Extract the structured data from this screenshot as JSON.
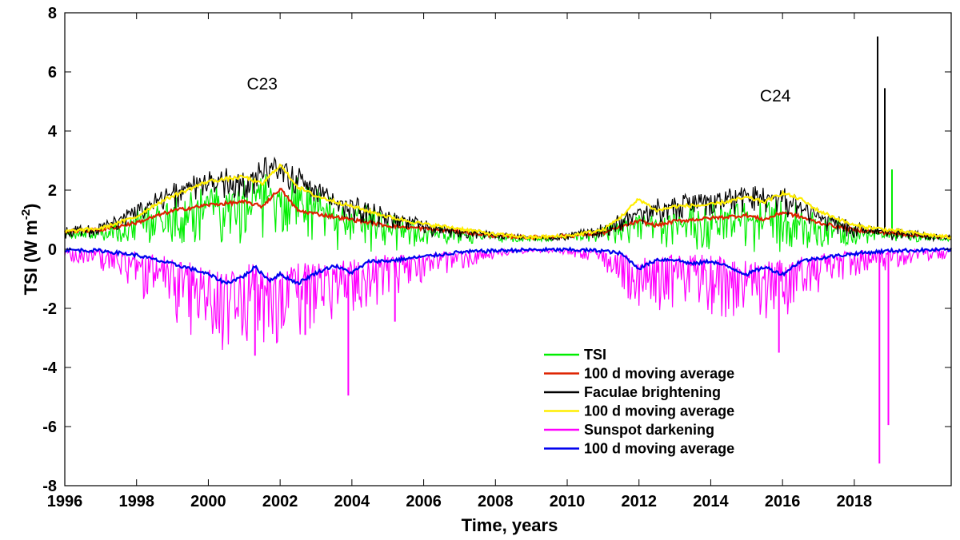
{
  "chart_data": {
    "type": "line",
    "title": "",
    "xlabel": "Time, years",
    "ylabel": "TSI (W m",
    "ylabel_sup": "-2",
    "ylabel_close": ")",
    "xlim": [
      1996,
      2020.7
    ],
    "ylim": [
      -8,
      8
    ],
    "x_ticks": [
      1996,
      1998,
      2000,
      2002,
      2004,
      2006,
      2008,
      2010,
      2012,
      2014,
      2016,
      2018
    ],
    "x_tick_labels": [
      "1996",
      "1998",
      "2000",
      "2002",
      "2004",
      "2006",
      "2008",
      "2010",
      "2012",
      "2014",
      "2016",
      "2018"
    ],
    "y_ticks": [
      -8,
      -6,
      -4,
      -2,
      0,
      2,
      4,
      6,
      8
    ],
    "y_tick_labels": [
      "-8",
      "-6",
      "-4",
      "-2",
      "0",
      "2",
      "4",
      "6",
      "8"
    ],
    "annotations": [
      {
        "text": "C23",
        "x": 2001.5,
        "y": 5.4
      },
      {
        "text": "C24",
        "x": 2015.8,
        "y": 5.0
      }
    ],
    "legend_position": "lower-center",
    "series": [
      {
        "name": "TSI",
        "color": "#00ee00",
        "kind": "daily",
        "x": [
          1996,
          1997,
          1998,
          1999,
          2000,
          2001,
          2002,
          2003,
          2004,
          2005,
          2006,
          2007,
          2008,
          2009,
          2010,
          2011,
          2012,
          2013,
          2014,
          2015,
          2016,
          2017,
          2018,
          2019,
          2020,
          2020.7
        ],
        "y": [
          0.5,
          0.55,
          0.9,
          1.2,
          1.5,
          1.55,
          1.9,
          1.3,
          1.0,
          0.75,
          0.6,
          0.5,
          0.4,
          0.35,
          0.4,
          0.6,
          0.85,
          0.9,
          0.95,
          0.95,
          1.1,
          0.8,
          0.55,
          0.5,
          0.4,
          0.35
        ],
        "amplitude": [
          0.2,
          0.3,
          0.7,
          1.0,
          1.3,
          1.4,
          1.5,
          1.3,
          1.2,
          0.9,
          0.5,
          0.3,
          0.2,
          0.1,
          0.1,
          0.4,
          0.7,
          0.9,
          1.0,
          1.1,
          1.2,
          0.8,
          0.4,
          0.3,
          0.15,
          0.1
        ],
        "spikes": [
          {
            "x": 2019.05,
            "y": 2.7
          }
        ]
      },
      {
        "name": "100 d moving average",
        "color": "#dd2200",
        "kind": "smooth",
        "x": [
          1996,
          1997,
          1998,
          1998.5,
          1999,
          2000,
          2001,
          2001.5,
          2002,
          2002.5,
          2003,
          2004,
          2005,
          2006,
          2007,
          2008,
          2009,
          2010,
          2011,
          2011.5,
          2012,
          2012.5,
          2013,
          2014,
          2015,
          2015.5,
          2016,
          2016.5,
          2017,
          2018,
          2019,
          2020,
          2020.7
        ],
        "y": [
          0.6,
          0.65,
          0.9,
          1.1,
          1.3,
          1.5,
          1.6,
          1.45,
          2.05,
          1.3,
          1.2,
          1.0,
          0.8,
          0.7,
          0.6,
          0.45,
          0.4,
          0.45,
          0.55,
          0.75,
          0.95,
          0.8,
          0.95,
          1.05,
          1.15,
          1.0,
          1.25,
          1.1,
          0.9,
          0.65,
          0.55,
          0.45,
          0.4
        ]
      },
      {
        "name": "Faculae brightening",
        "color": "#000000",
        "kind": "daily",
        "x": [
          1996,
          1997,
          1998,
          1999,
          2000,
          2001,
          2002,
          2003,
          2004,
          2005,
          2006,
          2007,
          2008,
          2009,
          2010,
          2011,
          2012,
          2013,
          2014,
          2015,
          2016,
          2017,
          2018,
          2019,
          2020,
          2020.7
        ],
        "y": [
          0.6,
          0.7,
          1.3,
          1.9,
          2.3,
          2.4,
          2.9,
          1.9,
          1.5,
          1.1,
          0.8,
          0.6,
          0.5,
          0.4,
          0.45,
          0.7,
          1.3,
          1.5,
          1.6,
          1.9,
          1.8,
          1.1,
          0.7,
          0.6,
          0.45,
          0.4
        ],
        "amplitude": [
          0.25,
          0.3,
          0.4,
          0.55,
          0.65,
          0.7,
          0.7,
          0.6,
          0.55,
          0.45,
          0.35,
          0.25,
          0.15,
          0.1,
          0.15,
          0.3,
          0.5,
          0.55,
          0.6,
          0.65,
          0.65,
          0.5,
          0.35,
          0.3,
          0.2,
          0.15
        ],
        "spikes": [
          {
            "x": 2018.65,
            "y": 7.2
          },
          {
            "x": 2018.85,
            "y": 5.45
          }
        ]
      },
      {
        "name": "100 d moving average",
        "color": "#ffee00",
        "kind": "smooth",
        "x": [
          1996,
          1997,
          1998,
          1998.5,
          1999,
          2000,
          2001,
          2001.5,
          2002,
          2002.5,
          2003,
          2004,
          2005,
          2006,
          2007,
          2008,
          2009,
          2010,
          2011,
          2011.5,
          2012,
          2012.5,
          2013,
          2014,
          2015,
          2015.5,
          2016,
          2016.5,
          2017,
          2018,
          2019,
          2020,
          2020.7
        ],
        "y": [
          0.6,
          0.7,
          1.1,
          1.5,
          1.8,
          2.3,
          2.45,
          2.2,
          2.85,
          2.1,
          1.8,
          1.45,
          1.1,
          0.85,
          0.7,
          0.5,
          0.4,
          0.45,
          0.65,
          1.1,
          1.7,
          1.3,
          1.45,
          1.5,
          1.75,
          1.6,
          1.9,
          1.7,
          1.3,
          0.8,
          0.65,
          0.5,
          0.4
        ]
      },
      {
        "name": "Sunspot darkening",
        "color": "#ff00ff",
        "kind": "daily_neg",
        "x": [
          1996,
          1997,
          1998,
          1999,
          2000,
          2001,
          2002,
          2003,
          2004,
          2005,
          2006,
          2007,
          2008,
          2009,
          2010,
          2011,
          2012,
          2013,
          2014,
          2015,
          2016,
          2017,
          2018,
          2019,
          2020,
          2020.7
        ],
        "y": [
          -0.05,
          -0.1,
          -0.3,
          -0.6,
          -0.9,
          -0.8,
          -0.9,
          -0.7,
          -0.6,
          -0.4,
          -0.25,
          -0.15,
          -0.05,
          -0.02,
          -0.03,
          -0.1,
          -0.5,
          -0.4,
          -0.45,
          -0.7,
          -0.6,
          -0.3,
          -0.15,
          -0.1,
          -0.05,
          -0.03
        ],
        "amplitude": [
          0.2,
          0.4,
          0.9,
          1.3,
          1.6,
          1.6,
          1.5,
          1.3,
          1.1,
          0.9,
          0.6,
          0.4,
          0.2,
          0.05,
          0.1,
          0.4,
          1.0,
          1.1,
          1.2,
          1.3,
          1.2,
          0.8,
          0.5,
          0.4,
          0.3,
          0.2
        ],
        "spikes": [
          {
            "x": 2001.3,
            "y": -3.6
          },
          {
            "x": 2002.7,
            "y": -2.9
          },
          {
            "x": 2003.9,
            "y": -4.95
          },
          {
            "x": 2005.2,
            "y": -2.45
          },
          {
            "x": 2015.9,
            "y": -3.5
          },
          {
            "x": 2018.7,
            "y": -7.25
          },
          {
            "x": 2018.95,
            "y": -5.95
          }
        ]
      },
      {
        "name": "100 d moving average",
        "color": "#0000ee",
        "kind": "smooth",
        "x": [
          1996,
          1997,
          1998,
          1999,
          1999.5,
          2000,
          2000.5,
          2001,
          2001.3,
          2001.7,
          2002,
          2002.5,
          2003,
          2003.5,
          2004,
          2004.5,
          2005,
          2006,
          2007,
          2008,
          2009,
          2010,
          2011,
          2011.5,
          2012,
          2012.5,
          2013,
          2013.5,
          2014,
          2014.5,
          2015,
          2015.5,
          2016,
          2016.5,
          2017,
          2018,
          2018.5,
          2019,
          2020,
          2020.7
        ],
        "y": [
          -0.02,
          -0.05,
          -0.2,
          -0.5,
          -0.65,
          -0.85,
          -1.15,
          -0.9,
          -0.6,
          -1.05,
          -0.85,
          -1.15,
          -0.8,
          -0.55,
          -0.8,
          -0.4,
          -0.4,
          -0.25,
          -0.1,
          -0.05,
          -0.02,
          -0.02,
          -0.05,
          -0.15,
          -0.65,
          -0.35,
          -0.35,
          -0.5,
          -0.4,
          -0.6,
          -0.85,
          -0.6,
          -0.85,
          -0.4,
          -0.3,
          -0.15,
          -0.1,
          -0.05,
          -0.03,
          -0.02
        ]
      }
    ]
  }
}
